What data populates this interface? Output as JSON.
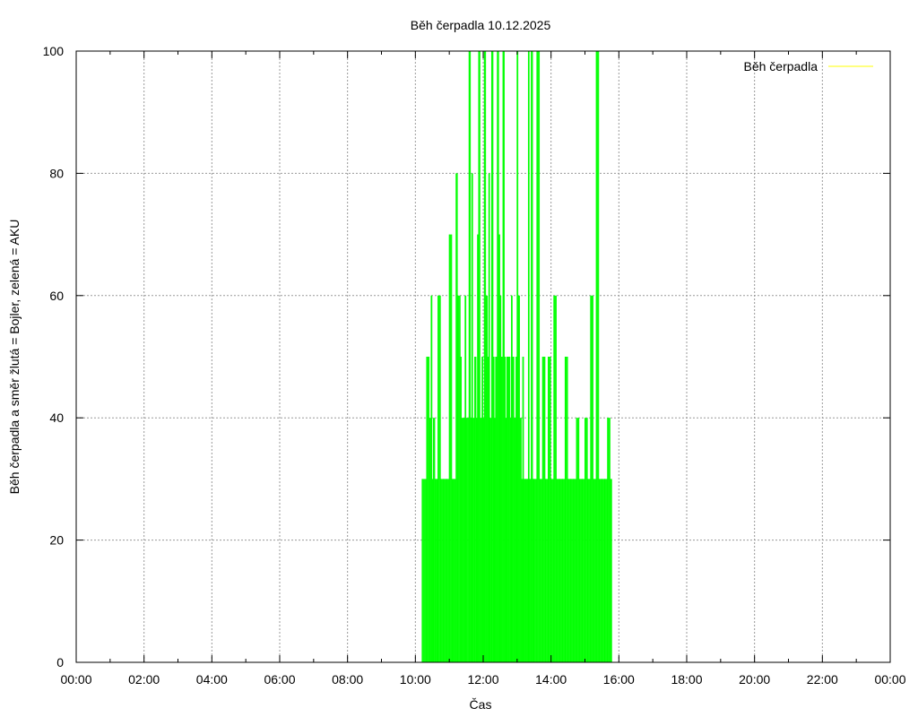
{
  "chart_data": {
    "type": "bar",
    "title": "Běh čerpadla 10.12.2025",
    "xlabel": "Čas",
    "ylabel": "Běh čerpadla a směr žlutá = Bojler, zelená = AKU",
    "xlim": [
      "00:00",
      "24:00"
    ],
    "ylim": [
      0,
      100
    ],
    "x_ticks": [
      "00:00",
      "02:00",
      "04:00",
      "06:00",
      "08:00",
      "10:00",
      "12:00",
      "14:00",
      "16:00",
      "18:00",
      "20:00",
      "22:00",
      "00:00"
    ],
    "y_ticks": [
      "0",
      "20",
      "40",
      "60",
      "80",
      "100"
    ],
    "grid": true,
    "legend": {
      "position": "top-right",
      "entries": [
        {
          "label": "Běh čerpadla",
          "color": "#ffff00"
        }
      ]
    },
    "colors": {
      "bojler": "#ffff00",
      "aku": "#00ff00",
      "grid": "#999999"
    },
    "series": [
      {
        "name": "Běh čerpadla",
        "color": "#00ff00",
        "x": [
          "10:12",
          "10:20",
          "10:25",
          "10:28",
          "10:30",
          "10:32",
          "10:35",
          "10:38",
          "10:40",
          "10:45",
          "10:50",
          "10:55",
          "11:00",
          "11:05",
          "11:08",
          "11:12",
          "11:15",
          "11:20",
          "11:22",
          "11:25",
          "11:28",
          "11:30",
          "11:35",
          "11:38",
          "11:40",
          "11:42",
          "11:45",
          "11:48",
          "11:50",
          "11:52",
          "11:55",
          "11:58",
          "12:00",
          "12:02",
          "12:05",
          "12:08",
          "12:10",
          "12:12",
          "12:15",
          "12:18",
          "12:20",
          "12:22",
          "12:25",
          "12:28",
          "12:30",
          "12:32",
          "12:35",
          "12:38",
          "12:40",
          "12:42",
          "12:45",
          "12:48",
          "12:50",
          "12:52",
          "12:55",
          "12:58",
          "13:00",
          "13:02",
          "13:05",
          "13:08",
          "13:10",
          "13:12",
          "13:15",
          "13:18",
          "13:20",
          "13:22",
          "13:25",
          "13:28",
          "13:30",
          "13:35",
          "13:40",
          "13:45",
          "13:50",
          "13:55",
          "14:00",
          "14:05",
          "14:10",
          "14:15",
          "14:20",
          "14:25",
          "14:30",
          "14:35",
          "14:40",
          "14:45",
          "14:50",
          "14:55",
          "15:00",
          "15:05",
          "15:10",
          "15:15",
          "15:20",
          "15:25",
          "15:30",
          "15:35",
          "15:40",
          "15:45"
        ],
        "values": [
          30,
          50,
          40,
          60,
          30,
          40,
          30,
          30,
          60,
          30,
          30,
          30,
          70,
          30,
          30,
          80,
          60,
          50,
          40,
          40,
          60,
          40,
          100,
          40,
          80,
          40,
          50,
          40,
          70,
          100,
          40,
          50,
          40,
          100,
          60,
          50,
          80,
          40,
          100,
          50,
          40,
          50,
          100,
          70,
          60,
          50,
          100,
          50,
          40,
          50,
          50,
          40,
          60,
          50,
          40,
          50,
          100,
          60,
          40,
          30,
          50,
          30,
          30,
          30,
          100,
          30,
          100,
          30,
          30,
          100,
          30,
          50,
          30,
          50,
          30,
          60,
          30,
          30,
          30,
          50,
          30,
          30,
          30,
          40,
          30,
          30,
          40,
          30,
          60,
          30,
          100,
          30,
          30,
          30,
          40,
          30
        ]
      }
    ]
  }
}
